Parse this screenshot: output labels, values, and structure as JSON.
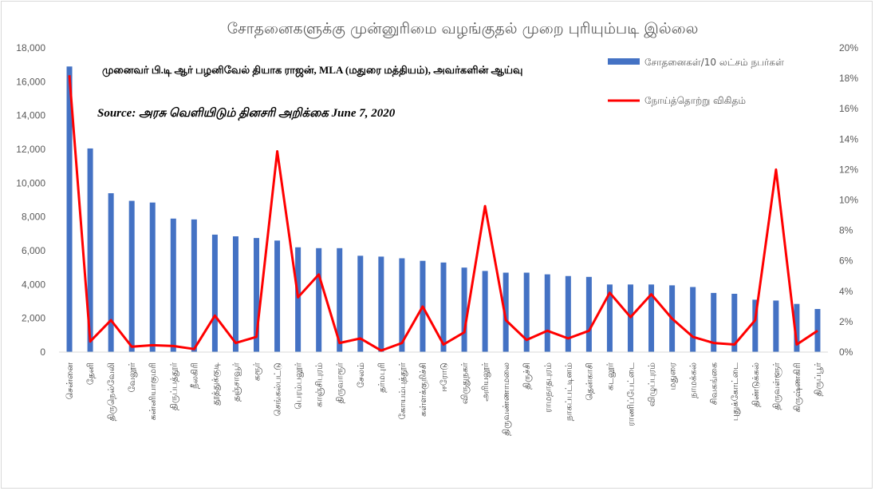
{
  "chart_data": {
    "type": "bar",
    "title": "சோதனைகளுக்கு முன்னுரிமை வழங்குதல் முறை புரியும்படி இல்லை",
    "annotations": [
      "முனைவர் பி.டி ஆர் பழனிவேல் தியாக ராஜன், MLA (மதுரை மத்தியம்), அவர்களின் ஆய்வு",
      "Source: அரசு வெளியிடும் தினசரி அறிக்கை June 7, 2020"
    ],
    "legend_position": "top-right",
    "grid": false,
    "categories": [
      "சென்னை",
      "தேனி",
      "திருநெல்வேலி",
      "வேலூர்",
      "கன்னியாகுமரி",
      "திருப்பத்தூர்",
      "நீலகிரி",
      "தூத்துக்குடி",
      "தஞ்சாவூர்",
      "கரூர்",
      "செங்கல்பட்டு",
      "பெரம்பலூர்",
      "காஞ்சிபுரம்",
      "திருவாரூர்",
      "சேலம்",
      "தர்மபுரி",
      "கோயம்புத்தூர்",
      "கள்ளக்குறிச்சி",
      "ஈரோடு",
      "விருதுநகர்",
      "அரியலூர்",
      "திருவண்ணாமலை",
      "திருச்சி",
      "ராமநாதபுரம்",
      "நாகப்பட்டினம்",
      "தென்காசி",
      "கடலூர்",
      "ராணிப்பேட்டை",
      "விழுப்புரம்",
      "மதுரை",
      "நாமக்கல்",
      "சிவகங்கை",
      "புதுக்கோட்டை",
      "திண்டுக்கல்",
      "திருவள்ளூர்",
      "கிருஷ்ணகிரி",
      "திருப்பூர்"
    ],
    "series": [
      {
        "name": "சோதனைகள்/10 லட்சம் நபர்கள்",
        "type": "bar",
        "axis": "left",
        "color": "#4472c4",
        "values": [
          16900,
          12050,
          9400,
          8950,
          8850,
          7900,
          7850,
          6950,
          6850,
          6750,
          6600,
          6200,
          6150,
          6150,
          5700,
          5650,
          5550,
          5400,
          5300,
          5000,
          4800,
          4700,
          4700,
          4600,
          4500,
          4450,
          4000,
          4000,
          4000,
          3950,
          3850,
          3500,
          3450,
          3100,
          3050,
          2850,
          2550
        ]
      },
      {
        "name": "நோய்த்தொற்று விகிதம்",
        "type": "line",
        "axis": "right",
        "color": "#ff0000",
        "values": [
          18.2,
          0.7,
          2.1,
          0.35,
          0.45,
          0.4,
          0.2,
          2.4,
          0.6,
          1.0,
          13.2,
          3.6,
          5.1,
          0.6,
          0.9,
          0.1,
          0.6,
          3.0,
          0.5,
          1.3,
          9.6,
          2.1,
          0.8,
          1.4,
          0.9,
          1.4,
          3.9,
          2.3,
          3.8,
          2.2,
          1.0,
          0.6,
          0.5,
          2.1,
          12.0,
          0.5,
          1.4
        ]
      }
    ],
    "ylim_left": [
      0,
      18000
    ],
    "ylim_right": [
      0,
      20
    ],
    "yticks_left": [
      "0",
      "2,000",
      "4,000",
      "6,000",
      "8,000",
      "10,000",
      "12,000",
      "14,000",
      "16,000",
      "18,000"
    ],
    "yticks_right": [
      "0%",
      "2%",
      "4%",
      "6%",
      "8%",
      "10%",
      "12%",
      "14%",
      "16%",
      "18%",
      "20%"
    ]
  }
}
